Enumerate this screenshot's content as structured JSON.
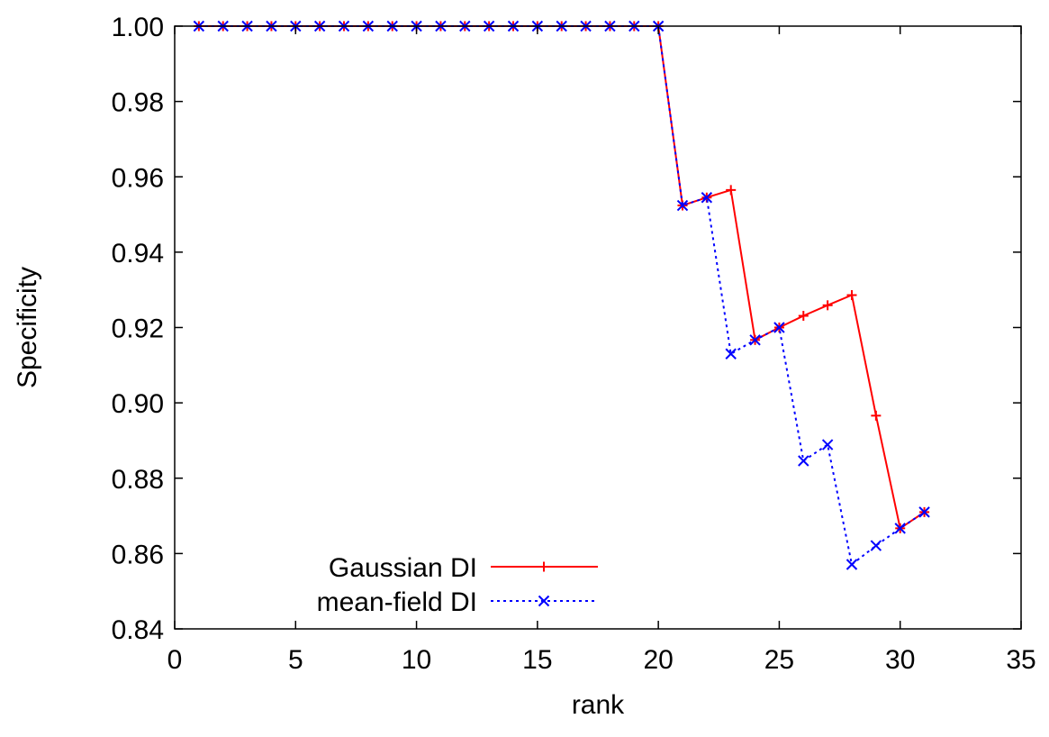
{
  "chart_data": {
    "type": "line",
    "title": "",
    "xlabel": "rank",
    "ylabel": "Specificity",
    "xlim": [
      0,
      35
    ],
    "ylim": [
      0.84,
      1.0
    ],
    "xticks": [
      0,
      5,
      10,
      15,
      20,
      25,
      30,
      35
    ],
    "yticks": [
      0.84,
      0.86,
      0.88,
      0.9,
      0.92,
      0.94,
      0.96,
      0.98,
      1.0
    ],
    "xtick_labels": [
      "0",
      "5",
      "10",
      "15",
      "20",
      "25",
      "30",
      "35"
    ],
    "ytick_labels": [
      "0.84",
      "0.86",
      "0.88",
      "0.90",
      "0.92",
      "0.94",
      "0.96",
      "0.98",
      "1.00"
    ],
    "grid": false,
    "legend_position": "bottom-left",
    "x": [
      1,
      2,
      3,
      4,
      5,
      6,
      7,
      8,
      9,
      10,
      11,
      12,
      13,
      14,
      15,
      16,
      17,
      18,
      19,
      20,
      21,
      22,
      23,
      24,
      25,
      26,
      27,
      28,
      29,
      30,
      31
    ],
    "series": [
      {
        "name": "Gaussian DI",
        "color": "#ff0000",
        "line_style": "solid",
        "marker": "plus",
        "values": [
          1.0,
          1.0,
          1.0,
          1.0,
          1.0,
          1.0,
          1.0,
          1.0,
          1.0,
          1.0,
          1.0,
          1.0,
          1.0,
          1.0,
          1.0,
          1.0,
          1.0,
          1.0,
          1.0,
          1.0,
          0.9524,
          0.9545,
          0.9565,
          0.9167,
          0.92,
          0.9231,
          0.9259,
          0.9286,
          0.8966,
          0.8667,
          0.871
        ]
      },
      {
        "name": "mean-field DI",
        "color": "#0000ff",
        "line_style": "dotted",
        "marker": "cross",
        "values": [
          1.0,
          1.0,
          1.0,
          1.0,
          1.0,
          1.0,
          1.0,
          1.0,
          1.0,
          1.0,
          1.0,
          1.0,
          1.0,
          1.0,
          1.0,
          1.0,
          1.0,
          1.0,
          1.0,
          1.0,
          0.9524,
          0.9545,
          0.913,
          0.9167,
          0.92,
          0.8846,
          0.8889,
          0.8571,
          0.8621,
          0.8667,
          0.871
        ]
      }
    ]
  }
}
